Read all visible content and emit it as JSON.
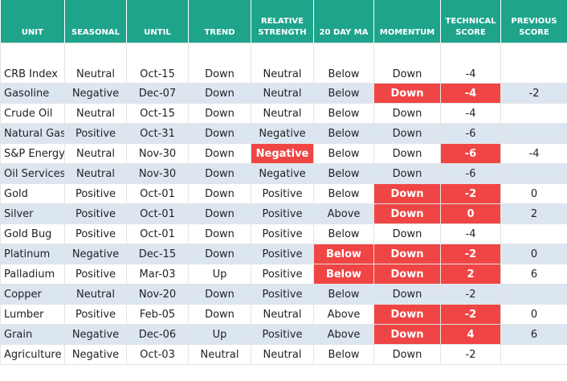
{
  "table": {
    "headers": [
      "UNIT",
      "SEASONAL",
      "UNTIL",
      "TREND",
      "RELATIVE STRENGTH",
      "20 DAY MA",
      "MOMENTUM",
      "TECHNICAL SCORE",
      "PREVIOUS SCORE"
    ],
    "rows": [
      [
        "CRB Index",
        "Neutral",
        "Oct-15",
        "Down",
        "Neutral",
        "Below",
        "Down",
        "-4",
        ""
      ],
      [
        "Gasoline",
        "Negative",
        "Dec-07",
        "Down",
        "Neutral",
        "Below",
        "Down",
        "-4",
        "-2"
      ],
      [
        "Crude Oil",
        "Neutral",
        "Oct-15",
        "Down",
        "Neutral",
        "Below",
        "Down",
        "-4",
        ""
      ],
      [
        "Natural Gas",
        "Positive",
        "Oct-31",
        "Down",
        "Negative",
        "Below",
        "Down",
        "-6",
        ""
      ],
      [
        "S&P Energy",
        "Neutral",
        "Nov-30",
        "Down",
        "Negative",
        "Below",
        "Down",
        "-6",
        "-4"
      ],
      [
        "Oil Services",
        "Neutral",
        "Nov-30",
        "Down",
        "Negative",
        "Below",
        "Down",
        "-6",
        ""
      ],
      [
        "Gold",
        "Positive",
        "Oct-01",
        "Down",
        "Positive",
        "Below",
        "Down",
        "-2",
        "0"
      ],
      [
        "Silver",
        "Positive",
        "Oct-01",
        "Down",
        "Positive",
        "Above",
        "Down",
        "0",
        "2"
      ],
      [
        "Gold Bug",
        "Positive",
        "Oct-01",
        "Down",
        "Positive",
        "Below",
        "Down",
        "-4",
        ""
      ],
      [
        "Platinum",
        "Negative",
        "Dec-15",
        "Down",
        "Positive",
        "Below",
        "Down",
        "-2",
        "0"
      ],
      [
        "Palladium",
        "Positive",
        "Mar-03",
        "Up",
        "Positive",
        "Below",
        "Down",
        "2",
        "6"
      ],
      [
        "Copper",
        "Neutral",
        "Nov-20",
        "Down",
        "Positive",
        "Below",
        "Down",
        "-2",
        ""
      ],
      [
        "Lumber",
        "Positive",
        "Feb-05",
        "Down",
        "Neutral",
        "Above",
        "Down",
        "-2",
        "0"
      ],
      [
        "Grain",
        "Negative",
        "Dec-06",
        "Up",
        "Positive",
        "Above",
        "Down",
        "4",
        "6"
      ],
      [
        "Agriculture",
        "Negative",
        "Oct-03",
        "Neutral",
        "Neutral",
        "Below",
        "Down",
        "-2",
        ""
      ]
    ],
    "highlighted": [
      [
        1,
        6
      ],
      [
        1,
        7
      ],
      [
        4,
        4
      ],
      [
        4,
        7
      ],
      [
        6,
        6
      ],
      [
        6,
        7
      ],
      [
        7,
        6
      ],
      [
        7,
        7
      ],
      [
        9,
        5
      ],
      [
        9,
        6
      ],
      [
        9,
        7
      ],
      [
        10,
        5
      ],
      [
        10,
        6
      ],
      [
        10,
        7
      ],
      [
        12,
        6
      ],
      [
        12,
        7
      ],
      [
        13,
        6
      ],
      [
        13,
        7
      ]
    ]
  }
}
